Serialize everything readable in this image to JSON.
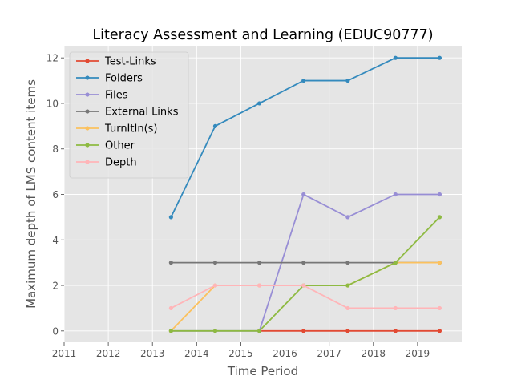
{
  "chart_data": {
    "type": "line",
    "title": "Literacy Assessment and Learning (EDUC90777)",
    "xlabel": "Time Period",
    "ylabel": "Maximum depth of LMS content items",
    "xlim": [
      2011,
      2020
    ],
    "ylim": [
      -0.5,
      12.5
    ],
    "xticks": [
      2011,
      2012,
      2013,
      2014,
      2015,
      2016,
      2017,
      2018,
      2019
    ],
    "yticks": [
      0,
      2,
      4,
      6,
      8,
      10,
      12
    ],
    "grid": true,
    "legend_position": "top-left",
    "x": [
      2013.42,
      2014.42,
      2015.42,
      2016.42,
      2017.42,
      2018.5,
      2019.5
    ],
    "series": [
      {
        "name": "Test-Links",
        "color": "#E24A33",
        "values": [
          null,
          null,
          0,
          0,
          0,
          0,
          0
        ]
      },
      {
        "name": "Folders",
        "color": "#348ABD",
        "values": [
          5,
          9,
          10,
          11,
          11,
          12,
          12
        ]
      },
      {
        "name": "Files",
        "color": "#988ED5",
        "values": [
          0,
          0,
          0,
          6,
          5,
          6,
          6
        ]
      },
      {
        "name": "External Links",
        "color": "#777777",
        "values": [
          3,
          3,
          3,
          3,
          3,
          3,
          3
        ]
      },
      {
        "name": "TurnItIn(s)",
        "color": "#FBC15E",
        "values": [
          0,
          2,
          2,
          2,
          2,
          3,
          3
        ]
      },
      {
        "name": "Other",
        "color": "#8EBA42",
        "values": [
          0,
          0,
          0,
          2,
          2,
          3,
          5
        ]
      },
      {
        "name": "Depth",
        "color": "#FFB5B8",
        "values": [
          1,
          2,
          2,
          2,
          1,
          1,
          1
        ]
      }
    ]
  }
}
